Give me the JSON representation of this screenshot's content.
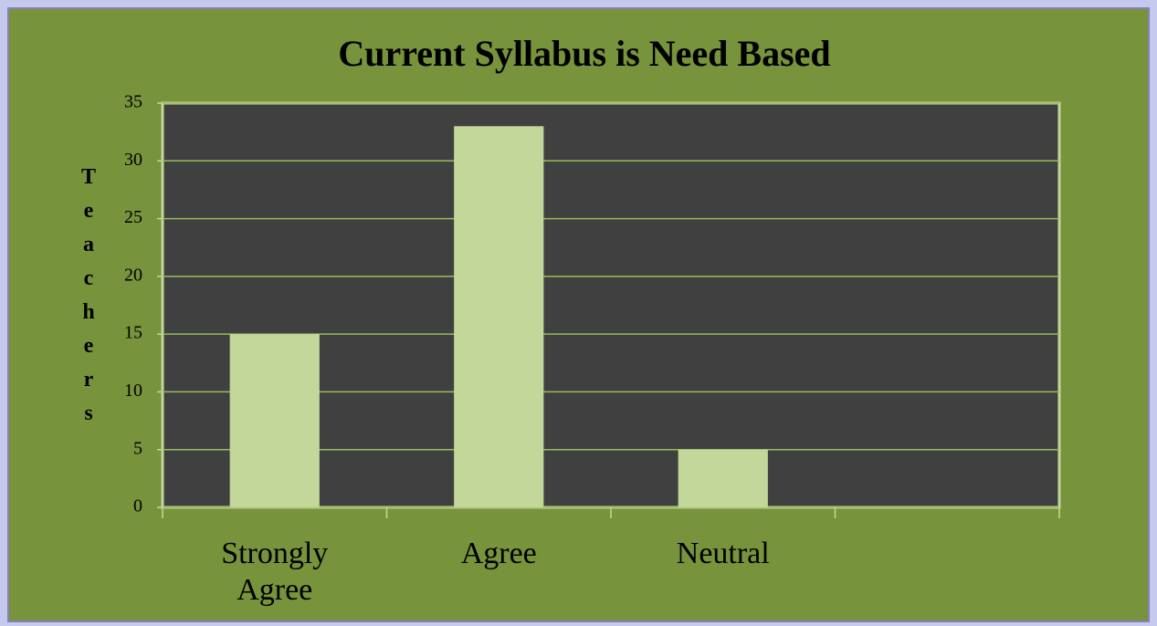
{
  "chart_data": {
    "type": "bar",
    "title": "Current Syllabus is Need Based",
    "y_label": "Teachers",
    "categories": [
      "Strongly Agree",
      "Agree",
      "Neutral",
      null
    ],
    "values": [
      15,
      33,
      5,
      null
    ],
    "color": "#c4d79b",
    "plot_background": "#404040",
    "ylim": [
      0,
      35
    ],
    "yticks": [
      0,
      5,
      10,
      15,
      20,
      25,
      30,
      35
    ],
    "grid": true
  }
}
